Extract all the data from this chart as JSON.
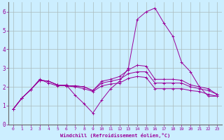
{
  "xlabel": "Windchill (Refroidissement éolien,°C)",
  "bg_color": "#cceeff",
  "line_color": "#990099",
  "grid_color": "#aabbbb",
  "ylim": [
    0,
    6.5
  ],
  "xlim": [
    -0.5,
    23.5
  ],
  "yticks": [
    0,
    1,
    2,
    3,
    4,
    5,
    6
  ],
  "xticks": [
    0,
    1,
    2,
    3,
    4,
    5,
    6,
    7,
    8,
    9,
    10,
    11,
    12,
    13,
    14,
    15,
    16,
    17,
    18,
    19,
    20,
    21,
    22,
    23
  ],
  "lines": [
    {
      "x": [
        0,
        1,
        2,
        3,
        4,
        5,
        6,
        7,
        8,
        9,
        10,
        11,
        12,
        13,
        14,
        15,
        16,
        17,
        18,
        19,
        20,
        21,
        22,
        23
      ],
      "y": [
        0.8,
        1.4,
        1.85,
        2.4,
        2.2,
        2.05,
        2.1,
        1.55,
        1.1,
        0.6,
        1.3,
        1.9,
        2.3,
        3.0,
        5.6,
        6.0,
        6.2,
        5.4,
        4.7,
        3.3,
        2.8,
        2.0,
        1.5,
        1.5
      ]
    },
    {
      "x": [
        0,
        1,
        2,
        3,
        4,
        5,
        6,
        7,
        8,
        9,
        10,
        11,
        12,
        13,
        14,
        15,
        16,
        17,
        18,
        19,
        20,
        21,
        22,
        23
      ],
      "y": [
        0.8,
        1.4,
        1.85,
        2.35,
        2.3,
        2.1,
        2.05,
        2.0,
        1.9,
        1.75,
        2.05,
        2.15,
        2.2,
        2.45,
        2.55,
        2.5,
        1.9,
        1.9,
        1.9,
        1.9,
        1.8,
        1.75,
        1.6,
        1.5
      ]
    },
    {
      "x": [
        0,
        1,
        2,
        3,
        4,
        5,
        6,
        7,
        8,
        9,
        10,
        11,
        12,
        13,
        14,
        15,
        16,
        17,
        18,
        19,
        20,
        21,
        22,
        23
      ],
      "y": [
        0.8,
        1.4,
        1.85,
        2.35,
        2.3,
        2.1,
        2.05,
        2.05,
        2.0,
        1.8,
        2.2,
        2.3,
        2.4,
        2.7,
        2.8,
        2.8,
        2.2,
        2.2,
        2.2,
        2.2,
        2.0,
        1.9,
        1.8,
        1.6
      ]
    },
    {
      "x": [
        0,
        1,
        2,
        3,
        4,
        5,
        6,
        7,
        8,
        9,
        10,
        11,
        12,
        13,
        14,
        15,
        16,
        17,
        18,
        19,
        20,
        21,
        22,
        23
      ],
      "y": [
        0.8,
        1.4,
        1.85,
        2.35,
        2.3,
        2.1,
        2.05,
        2.05,
        2.0,
        1.8,
        2.3,
        2.4,
        2.55,
        2.9,
        3.15,
        3.1,
        2.4,
        2.4,
        2.4,
        2.35,
        2.1,
        2.0,
        1.9,
        1.6
      ]
    }
  ]
}
